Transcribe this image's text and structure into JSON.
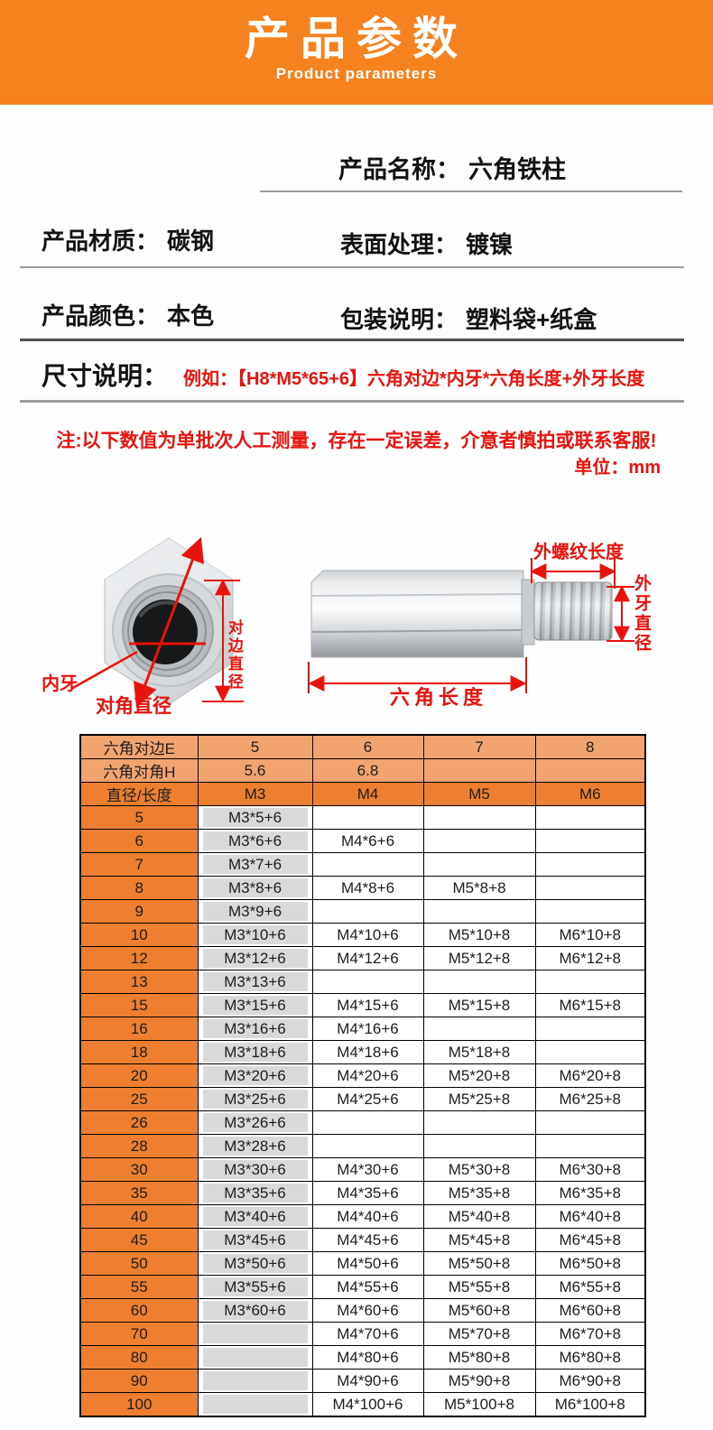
{
  "header": {
    "title": "产品参数",
    "subtitle": "Product parameters"
  },
  "info": {
    "name_label": "产品名称：",
    "name_value": "六角铁柱",
    "material_label": "产品材质：",
    "material_value": "碳钢",
    "surface_label": "表面处理：",
    "surface_value": "镀镍",
    "color_label": "产品颜色：",
    "color_value": "本色",
    "package_label": "包装说明：",
    "package_value": "塑料袋+纸盒",
    "size_label": "尺寸说明：",
    "size_example": "例如：【H8*M5*65+6】六角对边*内牙*六角长度+外牙长度"
  },
  "note": {
    "line1": "注:以下数值为单批次人工测量，存在一定误差，介意者慎拍或联系客服!",
    "unit": "单位：mm"
  },
  "diagram": {
    "labels": {
      "inner_thread": "内牙",
      "diagonal_diameter": "对角直径",
      "flat_diameter": "对边直径",
      "external_thread_length": "外螺纹长度",
      "external_thread_diameter": "外牙直径",
      "hex_length": "六角长度"
    }
  },
  "colors": {
    "accent_orange": "#F5821E",
    "table_header_light": "#F3A46E",
    "table_header_dark": "#EE7E30",
    "cell_gray": "#D9D9D9",
    "annotation_red": "#E8130C",
    "border_black": "#000000"
  },
  "table": {
    "head": [
      {
        "cells": [
          "六角对边E",
          "5",
          "6",
          "7",
          "8"
        ]
      },
      {
        "cells": [
          "六角对角H",
          "5.6",
          "6.8",
          "",
          ""
        ]
      },
      {
        "cells": [
          "直径/长度",
          "M3",
          "M4",
          "M5",
          "M6"
        ]
      }
    ],
    "rows": [
      [
        "5",
        "M3*5+6",
        "",
        "",
        ""
      ],
      [
        "6",
        "M3*6+6",
        "M4*6+6",
        "",
        ""
      ],
      [
        "7",
        "M3*7+6",
        "",
        "",
        ""
      ],
      [
        "8",
        "M3*8+6",
        "M4*8+6",
        "M5*8+8",
        ""
      ],
      [
        "9",
        "M3*9+6",
        "",
        "",
        ""
      ],
      [
        "10",
        "M3*10+6",
        "M4*10+6",
        "M5*10+8",
        "M6*10+8"
      ],
      [
        "12",
        "M3*12+6",
        "M4*12+6",
        "M5*12+8",
        "M6*12+8"
      ],
      [
        "13",
        "M3*13+6",
        "",
        "",
        ""
      ],
      [
        "15",
        "M3*15+6",
        "M4*15+6",
        "M5*15+8",
        "M6*15+8"
      ],
      [
        "16",
        "M3*16+6",
        "M4*16+6",
        "",
        ""
      ],
      [
        "18",
        "M3*18+6",
        "M4*18+6",
        "M5*18+8",
        ""
      ],
      [
        "20",
        "M3*20+6",
        "M4*20+6",
        "M5*20+8",
        "M6*20+8"
      ],
      [
        "25",
        "M3*25+6",
        "M4*25+6",
        "M5*25+8",
        "M6*25+8"
      ],
      [
        "26",
        "M3*26+6",
        "",
        "",
        ""
      ],
      [
        "28",
        "M3*28+6",
        "",
        "",
        ""
      ],
      [
        "30",
        "M3*30+6",
        "M4*30+6",
        "M5*30+8",
        "M6*30+8"
      ],
      [
        "35",
        "M3*35+6",
        "M4*35+6",
        "M5*35+8",
        "M6*35+8"
      ],
      [
        "40",
        "M3*40+6",
        "M4*40+6",
        "M5*40+8",
        "M6*40+8"
      ],
      [
        "45",
        "M3*45+6",
        "M4*45+6",
        "M5*45+8",
        "M6*45+8"
      ],
      [
        "50",
        "M3*50+6",
        "M4*50+6",
        "M5*50+8",
        "M6*50+8"
      ],
      [
        "55",
        "M3*55+6",
        "M4*55+6",
        "M5*55+8",
        "M6*55+8"
      ],
      [
        "60",
        "M3*60+6",
        "M4*60+6",
        "M5*60+8",
        "M6*60+8"
      ],
      [
        "70",
        "",
        "M4*70+6",
        "M5*70+8",
        "M6*70+8"
      ],
      [
        "80",
        "",
        "M4*80+6",
        "M5*80+8",
        "M6*80+8"
      ],
      [
        "90",
        "",
        "M4*90+6",
        "M5*90+8",
        "M6*90+8"
      ],
      [
        "100",
        "",
        "M4*100+6",
        "M5*100+8",
        "M6*100+8"
      ]
    ]
  }
}
